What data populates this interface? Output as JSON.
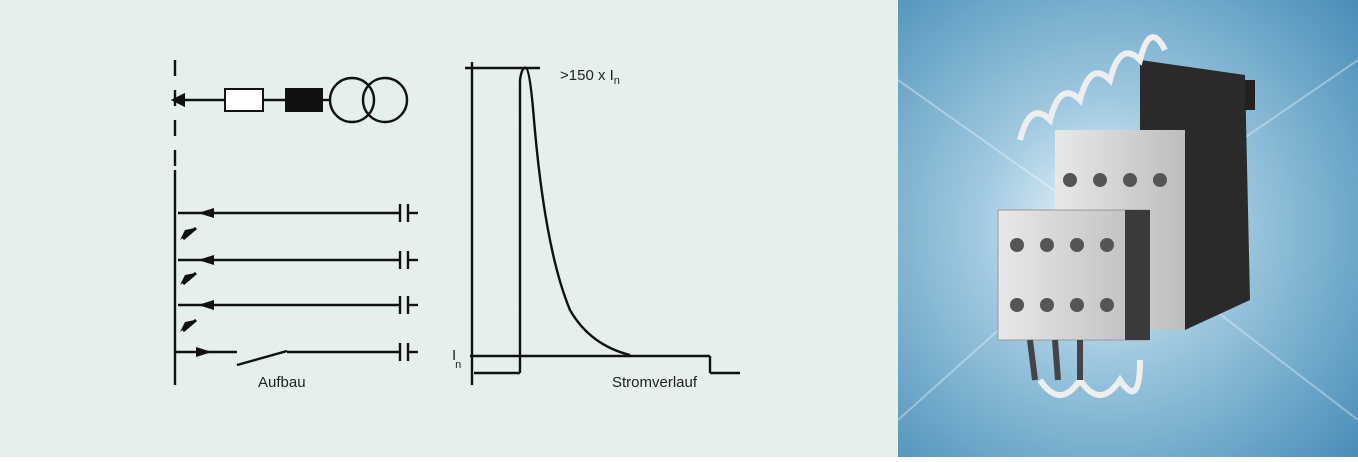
{
  "diagram": {
    "labels": {
      "structure": "Aufbau",
      "current_curve": "Stromverlauf"
    },
    "peak_label": {
      "text": ">150 x I",
      "subscript": "n"
    },
    "rated_label": {
      "text": "I",
      "subscript": "n"
    }
  }
}
